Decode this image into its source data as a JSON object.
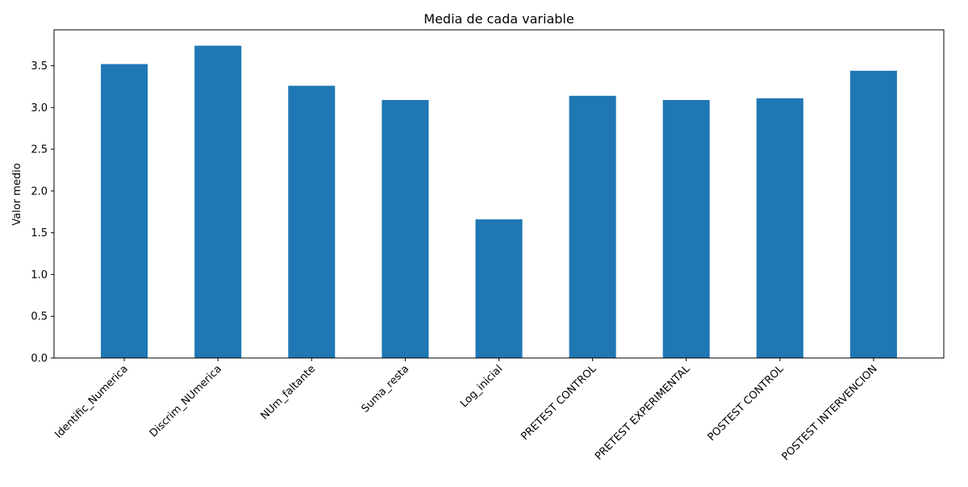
{
  "chart_data": {
    "type": "bar",
    "title": "Media de cada variable",
    "xlabel": "",
    "ylabel": "Valor medio",
    "categories": [
      "Identific_Numerica",
      "Discrim_NUmerica",
      "NUm_faltante",
      "Suma_resta",
      "Log_inicial",
      "PRETEST CONTROL",
      "PRETEST EXPERIMENTAL",
      "POSTEST CONTROL",
      "POSTEST INTERVENCION"
    ],
    "values": [
      3.52,
      3.74,
      3.26,
      3.09,
      1.66,
      3.14,
      3.09,
      3.11,
      3.44
    ],
    "ylim": [
      0,
      3.93
    ],
    "yticks": [
      0.0,
      0.5,
      1.0,
      1.5,
      2.0,
      2.5,
      3.0,
      3.5
    ],
    "ytick_labels": [
      "0.0",
      "0.5",
      "1.0",
      "1.5",
      "2.0",
      "2.5",
      "3.0",
      "3.5"
    ],
    "bar_color": "#1f77b4",
    "grid": false,
    "legend": "none"
  }
}
